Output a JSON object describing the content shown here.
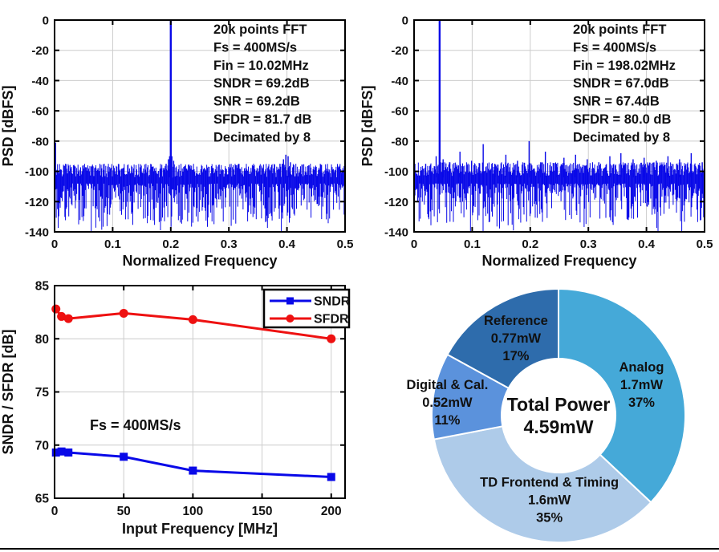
{
  "figure": {
    "background": "#ffffff",
    "divider_color": "#000000",
    "grid_color": "#cccccc",
    "axis_color": "#000000"
  },
  "chart_data": [
    {
      "id": "psd1",
      "type": "line",
      "kind": "psd",
      "title": "",
      "xlabel": "Normalized Frequency",
      "ylabel": "PSD [dBFS]",
      "xlim": [
        0,
        0.5
      ],
      "ylim": [
        -140,
        0
      ],
      "xticks": [
        "0",
        "0.1",
        "0.2",
        "0.3",
        "0.4",
        "0.5"
      ],
      "yticks": [
        0,
        -20,
        -40,
        -60,
        -80,
        -100,
        -120,
        -140
      ],
      "grid": true,
      "line_color": "#0909E8",
      "annotation_lines": [
        "20k points FFT",
        "Fs = 400MS/s",
        "Fin = 10.02MHz",
        "SNDR = 69.2dB",
        "SNR = 69.2dB",
        "SFDR = 81.7 dB",
        "Decimated by 8"
      ],
      "tones": [
        [
          0.001,
          -81
        ],
        [
          0.2,
          0
        ]
      ],
      "spurs": [
        [
          0.192,
          -95
        ],
        [
          0.196,
          -92
        ],
        [
          0.198,
          -90
        ],
        [
          0.202,
          -90
        ],
        [
          0.205,
          -93
        ],
        [
          0.388,
          -95
        ],
        [
          0.394,
          -92
        ],
        [
          0.398,
          -89
        ],
        [
          0.402,
          -90
        ],
        [
          0.406,
          -94
        ],
        [
          0.412,
          -96
        ],
        [
          0.45,
          -97
        ]
      ],
      "noise_floor": {
        "top_dB": -96,
        "typical_bottom_dB": -125,
        "min_dB": -140
      },
      "seed": 20321
    },
    {
      "id": "psd2",
      "type": "line",
      "kind": "psd",
      "title": "",
      "xlabel": "Normalized Frequency",
      "ylabel": "PSD [dBFS]",
      "xlim": [
        0,
        0.5
      ],
      "ylim": [
        -140,
        0
      ],
      "xticks": [
        "0",
        "0.1",
        "0.2",
        "0.3",
        "0.4",
        "0.5"
      ],
      "yticks": [
        0,
        -20,
        -40,
        -60,
        -80,
        -100,
        -120,
        -140
      ],
      "grid": true,
      "line_color": "#0909E8",
      "annotation_lines": [
        "20k points FFT",
        "Fs = 400MS/s",
        "Fin = 198.02MHz",
        "SNDR = 67.0dB",
        "SNR = 67.4dB",
        "SFDR = 80.0 dB",
        "Decimated by 8"
      ],
      "tones": [
        [
          0.044,
          0
        ]
      ],
      "spurs": [
        [
          0.02,
          -95
        ],
        [
          0.038,
          -90
        ],
        [
          0.05,
          -92
        ],
        [
          0.061,
          -94
        ],
        [
          0.079,
          -87
        ],
        [
          0.099,
          -93
        ],
        [
          0.119,
          -82
        ],
        [
          0.139,
          -95
        ],
        [
          0.158,
          -89
        ],
        [
          0.178,
          -93
        ],
        [
          0.198,
          -80
        ],
        [
          0.218,
          -94
        ],
        [
          0.226,
          -87
        ],
        [
          0.245,
          -95
        ],
        [
          0.258,
          -91
        ],
        [
          0.278,
          -89
        ],
        [
          0.298,
          -92
        ],
        [
          0.318,
          -94
        ],
        [
          0.337,
          -90
        ],
        [
          0.356,
          -88
        ],
        [
          0.377,
          -92
        ],
        [
          0.396,
          -91
        ],
        [
          0.417,
          -93
        ],
        [
          0.437,
          -90
        ],
        [
          0.457,
          -92
        ],
        [
          0.477,
          -88
        ],
        [
          0.496,
          -94
        ]
      ],
      "noise_floor": {
        "top_dB": -95,
        "typical_bottom_dB": -125,
        "min_dB": -140
      },
      "seed": 77131
    },
    {
      "id": "sweep",
      "type": "line",
      "title": "",
      "xlabel": "Input Frequency [MHz]",
      "ylabel": "SNDR / SFDR [dB]",
      "xlim": [
        0,
        210
      ],
      "ylim": [
        65,
        85
      ],
      "xticks": [
        0,
        50,
        100,
        150,
        200
      ],
      "yticks": [
        65,
        70,
        75,
        80,
        85
      ],
      "grid": true,
      "annotation": "Fs = 400MS/s",
      "legend": {
        "position": "top-right",
        "entries": [
          "SNDR",
          "SFDR"
        ]
      },
      "series": [
        {
          "name": "SNDR",
          "color": "#0909E8",
          "marker": "square",
          "x": [
            1,
            5,
            10,
            50,
            100,
            200
          ],
          "y": [
            69.3,
            69.4,
            69.3,
            68.9,
            67.6,
            67.0
          ]
        },
        {
          "name": "SFDR",
          "color": "#EE1111",
          "marker": "circle",
          "x": [
            1,
            5,
            10,
            50,
            100,
            200
          ],
          "y": [
            82.8,
            82.1,
            81.9,
            82.4,
            81.8,
            80.0
          ]
        }
      ]
    },
    {
      "id": "donut",
      "type": "pie",
      "donut": true,
      "center_label": [
        "Total Power",
        "4.59mW"
      ],
      "start_angle_deg": 0,
      "direction": "clockwise",
      "hole_ratio": 0.45,
      "slices": [
        {
          "label": "Analog",
          "value": "1.7mW",
          "pct": 37,
          "color": "#45A9D8",
          "nudge": [
            -3,
            8
          ]
        },
        {
          "label": "TD Frontend & Timing",
          "value": "1.6mW",
          "pct": 35,
          "color": "#AECBE9",
          "nudge": [
            21,
            -6
          ]
        },
        {
          "label": "Digital & Cal.",
          "value": "0.52mW",
          "pct": 11,
          "color": "#5B92DC",
          "nudge": [
            -24,
            2
          ]
        },
        {
          "label": "Reference",
          "value": "0.77mW",
          "pct": 17,
          "color": "#2E6CAC",
          "nudge": [
            6,
            4
          ]
        }
      ]
    }
  ]
}
